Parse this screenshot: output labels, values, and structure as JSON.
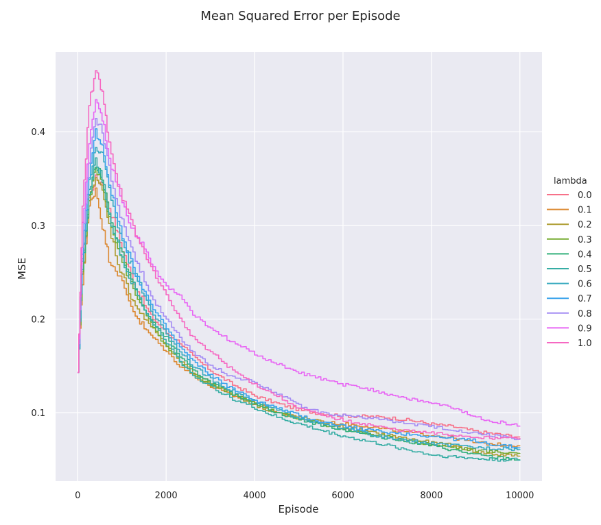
{
  "chart_data": {
    "type": "line",
    "title": "Mean Squared Error per Episode",
    "xlabel": "Episode",
    "ylabel": "MSE",
    "xlim": [
      -500,
      10500
    ],
    "ylim": [
      0.027,
      0.485
    ],
    "xticks": [
      0,
      2000,
      4000,
      6000,
      8000,
      10000
    ],
    "xtick_labels": [
      "0",
      "2000",
      "4000",
      "6000",
      "8000",
      "10000"
    ],
    "yticks": [
      0.1,
      0.2,
      0.3,
      0.4
    ],
    "ytick_labels": [
      "0.1",
      "0.2",
      "0.3",
      "0.4"
    ],
    "grid": true,
    "legend": {
      "title": "lambda",
      "placement": "right, outside"
    },
    "series": [
      {
        "name": "0.0",
        "color": "#f77189",
        "x": [
          0,
          100,
          250,
          400,
          550,
          700,
          900,
          1100,
          1300,
          1500,
          1700,
          2000,
          2300,
          2600,
          3000,
          3500,
          4000,
          4500,
          5000,
          5500,
          6000,
          6500,
          7000,
          7500,
          8000,
          8500,
          9000,
          9500,
          10000
        ],
        "values": [
          0.143,
          0.25,
          0.33,
          0.35,
          0.345,
          0.32,
          0.29,
          0.26,
          0.235,
          0.215,
          0.2,
          0.185,
          0.175,
          0.16,
          0.145,
          0.13,
          0.118,
          0.11,
          0.103,
          0.099,
          0.097,
          0.096,
          0.095,
          0.092,
          0.088,
          0.085,
          0.08,
          0.077,
          0.074
        ]
      },
      {
        "name": "0.1",
        "color": "#dc8932",
        "x": [
          0,
          100,
          250,
          400,
          550,
          700,
          900,
          1100,
          1300,
          1500,
          1700,
          2000,
          2300,
          2600,
          3000,
          3500,
          4000,
          4500,
          5000,
          5500,
          6000,
          6500,
          7000,
          7500,
          8000,
          8500,
          9000,
          9500,
          10000
        ],
        "values": [
          0.143,
          0.24,
          0.32,
          0.34,
          0.3,
          0.265,
          0.25,
          0.225,
          0.205,
          0.19,
          0.18,
          0.165,
          0.15,
          0.14,
          0.128,
          0.118,
          0.11,
          0.1,
          0.094,
          0.09,
          0.088,
          0.086,
          0.082,
          0.079,
          0.076,
          0.073,
          0.068,
          0.066,
          0.065
        ]
      },
      {
        "name": "0.2",
        "color": "#ae9d31",
        "x": [
          0,
          100,
          250,
          400,
          550,
          700,
          900,
          1100,
          1300,
          1500,
          1700,
          2000,
          2300,
          2600,
          3000,
          3500,
          4000,
          4500,
          5000,
          5500,
          6000,
          6500,
          7000,
          7500,
          8000,
          8500,
          9000,
          9500,
          10000
        ],
        "values": [
          0.143,
          0.245,
          0.325,
          0.355,
          0.335,
          0.3,
          0.26,
          0.235,
          0.215,
          0.2,
          0.19,
          0.17,
          0.155,
          0.143,
          0.132,
          0.12,
          0.108,
          0.1,
          0.095,
          0.09,
          0.085,
          0.08,
          0.076,
          0.072,
          0.068,
          0.065,
          0.058,
          0.055,
          0.054
        ]
      },
      {
        "name": "0.3",
        "color": "#77ab31",
        "x": [
          0,
          100,
          250,
          400,
          550,
          700,
          900,
          1100,
          1300,
          1500,
          1700,
          2000,
          2300,
          2600,
          3000,
          3500,
          4000,
          4500,
          5000,
          5500,
          6000,
          6500,
          7000,
          7500,
          8000,
          8500,
          9000,
          9500,
          10000
        ],
        "values": [
          0.143,
          0.25,
          0.33,
          0.36,
          0.345,
          0.31,
          0.275,
          0.25,
          0.225,
          0.21,
          0.19,
          0.17,
          0.155,
          0.14,
          0.13,
          0.12,
          0.11,
          0.1,
          0.094,
          0.088,
          0.083,
          0.078,
          0.074,
          0.07,
          0.066,
          0.063,
          0.06,
          0.058,
          0.057
        ]
      },
      {
        "name": "0.4",
        "color": "#33b07a",
        "x": [
          0,
          100,
          250,
          400,
          550,
          700,
          900,
          1100,
          1300,
          1500,
          1700,
          2000,
          2300,
          2600,
          3000,
          3500,
          4000,
          4500,
          5000,
          5500,
          6000,
          6500,
          7000,
          7500,
          8000,
          8500,
          9000,
          9500,
          10000
        ],
        "values": [
          0.143,
          0.255,
          0.33,
          0.365,
          0.35,
          0.315,
          0.28,
          0.255,
          0.23,
          0.21,
          0.195,
          0.18,
          0.16,
          0.145,
          0.132,
          0.12,
          0.11,
          0.1,
          0.093,
          0.087,
          0.082,
          0.077,
          0.073,
          0.069,
          0.065,
          0.06,
          0.055,
          0.052,
          0.05
        ]
      },
      {
        "name": "0.5",
        "color": "#36ada4",
        "x": [
          0,
          100,
          250,
          400,
          550,
          700,
          900,
          1100,
          1300,
          1500,
          1700,
          2000,
          2300,
          2600,
          3000,
          3500,
          4000,
          4500,
          5000,
          5500,
          6000,
          6500,
          7000,
          7500,
          8000,
          8500,
          9000,
          9500,
          10000
        ],
        "values": [
          0.143,
          0.26,
          0.335,
          0.37,
          0.35,
          0.31,
          0.28,
          0.25,
          0.23,
          0.21,
          0.195,
          0.175,
          0.155,
          0.14,
          0.128,
          0.115,
          0.105,
          0.095,
          0.088,
          0.081,
          0.075,
          0.07,
          0.065,
          0.06,
          0.055,
          0.053,
          0.051,
          0.05,
          0.05
        ]
      },
      {
        "name": "0.6",
        "color": "#38aabf",
        "x": [
          0,
          100,
          250,
          400,
          550,
          700,
          900,
          1100,
          1300,
          1500,
          1700,
          2000,
          2300,
          2600,
          3000,
          3500,
          4000,
          4500,
          5000,
          5500,
          6000,
          6500,
          7000,
          7500,
          8000,
          8500,
          9000,
          9500,
          10000
        ],
        "values": [
          0.143,
          0.26,
          0.345,
          0.385,
          0.375,
          0.34,
          0.3,
          0.27,
          0.245,
          0.225,
          0.205,
          0.185,
          0.165,
          0.15,
          0.136,
          0.123,
          0.112,
          0.103,
          0.095,
          0.088,
          0.083,
          0.078,
          0.073,
          0.07,
          0.067,
          0.065,
          0.063,
          0.062,
          0.061
        ]
      },
      {
        "name": "0.7",
        "color": "#3ba3ec",
        "x": [
          0,
          100,
          250,
          400,
          550,
          700,
          900,
          1100,
          1300,
          1500,
          1700,
          2000,
          2300,
          2600,
          3000,
          3500,
          4000,
          4500,
          5000,
          5500,
          6000,
          6500,
          7000,
          7500,
          8000,
          8500,
          9000,
          9500,
          10000
        ],
        "values": [
          0.143,
          0.27,
          0.355,
          0.4,
          0.385,
          0.345,
          0.305,
          0.275,
          0.25,
          0.23,
          0.21,
          0.19,
          0.17,
          0.155,
          0.14,
          0.125,
          0.113,
          0.105,
          0.097,
          0.09,
          0.086,
          0.082,
          0.079,
          0.077,
          0.075,
          0.072,
          0.07,
          0.065,
          0.063
        ]
      },
      {
        "name": "0.8",
        "color": "#a48cf4",
        "x": [
          0,
          100,
          250,
          400,
          550,
          700,
          900,
          1100,
          1300,
          1500,
          1700,
          2000,
          2300,
          2600,
          3000,
          3500,
          4000,
          4500,
          5000,
          5500,
          6000,
          6500,
          7000,
          7500,
          8000,
          8500,
          9000,
          9500,
          10000
        ],
        "values": [
          0.143,
          0.28,
          0.37,
          0.415,
          0.4,
          0.36,
          0.32,
          0.29,
          0.265,
          0.24,
          0.22,
          0.2,
          0.18,
          0.165,
          0.15,
          0.138,
          0.133,
          0.12,
          0.108,
          0.1,
          0.097,
          0.095,
          0.092,
          0.088,
          0.085,
          0.082,
          0.078,
          0.075,
          0.072
        ]
      },
      {
        "name": "0.9",
        "color": "#e866f4",
        "x": [
          0,
          100,
          250,
          400,
          550,
          700,
          900,
          1100,
          1300,
          1500,
          1700,
          2000,
          2300,
          2600,
          3000,
          3500,
          4000,
          4500,
          5000,
          5500,
          6000,
          6500,
          7000,
          7500,
          8000,
          8500,
          9000,
          9500,
          10000
        ],
        "values": [
          0.143,
          0.3,
          0.39,
          0.43,
          0.415,
          0.37,
          0.34,
          0.31,
          0.29,
          0.275,
          0.255,
          0.235,
          0.225,
          0.205,
          0.19,
          0.175,
          0.163,
          0.152,
          0.143,
          0.136,
          0.13,
          0.126,
          0.12,
          0.115,
          0.11,
          0.105,
          0.095,
          0.09,
          0.086
        ]
      },
      {
        "name": "1.0",
        "color": "#f668c2",
        "x": [
          0,
          100,
          250,
          400,
          550,
          700,
          900,
          1100,
          1300,
          1500,
          1700,
          2000,
          2300,
          2600,
          3000,
          3500,
          4000,
          4500,
          5000,
          5500,
          6000,
          6500,
          7000,
          7500,
          8000,
          8500,
          9000,
          9500,
          10000
        ],
        "values": [
          0.143,
          0.32,
          0.43,
          0.465,
          0.44,
          0.39,
          0.345,
          0.315,
          0.29,
          0.27,
          0.25,
          0.225,
          0.2,
          0.18,
          0.165,
          0.145,
          0.13,
          0.118,
          0.105,
          0.097,
          0.092,
          0.088,
          0.083,
          0.08,
          0.078,
          0.076,
          0.074,
          0.073,
          0.073
        ]
      }
    ]
  }
}
